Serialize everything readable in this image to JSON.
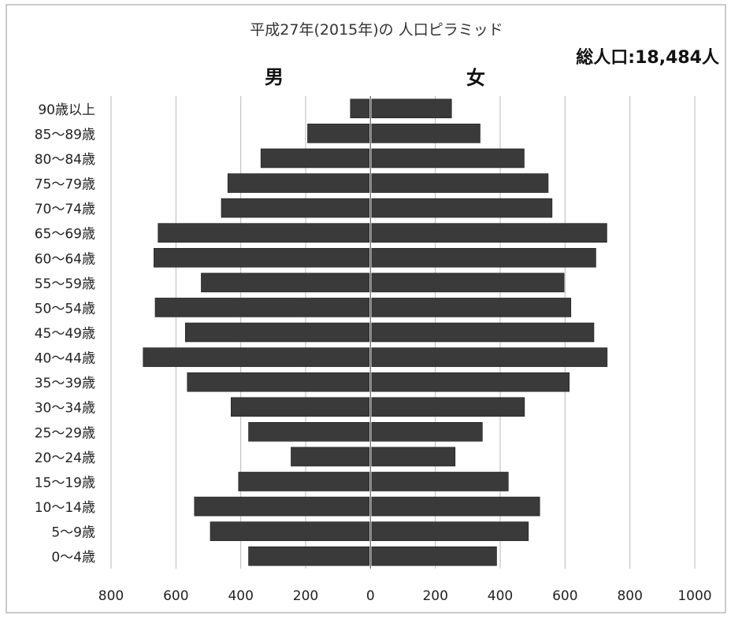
{
  "chart_data": {
    "type": "bar",
    "orientation": "horizontal",
    "title": "平成27年(2015年)の 人口ピラミッド",
    "total_label": "総人口:18,484人",
    "categories": [
      "0〜4歳",
      "5〜9歳",
      "10〜14歳",
      "15〜19歳",
      "20〜24歳",
      "25〜29歳",
      "30〜34歳",
      "35〜39歳",
      "40〜44歳",
      "45〜49歳",
      "50〜54歳",
      "55〜59歳",
      "60〜64歳",
      "65〜69歳",
      "70〜74歳",
      "75〜79歳",
      "80〜84歳",
      "85〜89歳",
      "90歳以上"
    ],
    "series": [
      {
        "name": "男",
        "values": [
          376,
          494,
          543,
          407,
          245,
          376,
          430,
          565,
          701,
          571,
          664,
          522,
          668,
          655,
          460,
          440,
          338,
          194,
          62
        ]
      },
      {
        "name": "女",
        "values": [
          389,
          487,
          522,
          425,
          261,
          345,
          475,
          613,
          730,
          689,
          618,
          597,
          695,
          729,
          560,
          548,
          474,
          338,
          250
        ]
      }
    ],
    "xlim": [
      -800,
      1000
    ],
    "x_ticks": [
      -800,
      -600,
      -400,
      -200,
      0,
      200,
      400,
      600,
      800,
      1000
    ],
    "x_tick_labels": [
      "800",
      "600",
      "400",
      "200",
      "0",
      "200",
      "400",
      "600",
      "800",
      "1000"
    ],
    "grid": true,
    "bar_color": "#3a3a3a"
  }
}
